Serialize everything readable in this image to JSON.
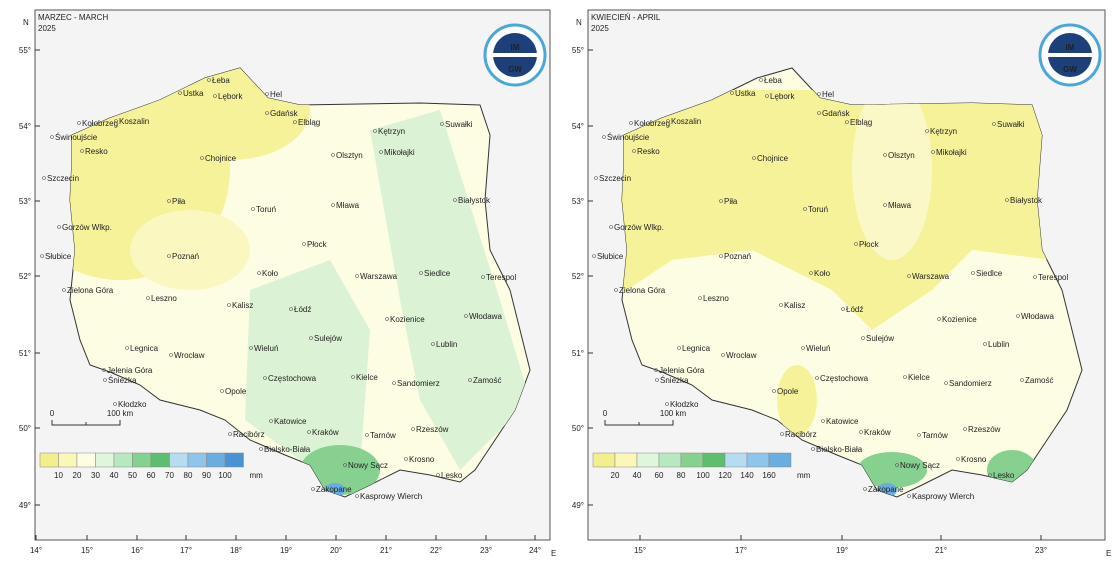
{
  "cities": [
    "Łeba",
    "Hel",
    "Ustka",
    "Lębork",
    "Gdańsk",
    "Elbląg",
    "Kołobrzeg",
    "Koszalin",
    "Świnoujście",
    "Kętrzyn",
    "Suwałki",
    "Mikołajki",
    "Olsztyn",
    "Chojnice",
    "Resko",
    "Szczecin",
    "Białystok",
    "Piła",
    "Toruń",
    "Mława",
    "Gorzów Wlkp.",
    "Płock",
    "Słubice",
    "Poznań",
    "Siedlce",
    "Terespol",
    "Koło",
    "Warszawa",
    "Zielona Góra",
    "Leszno",
    "Kalisz",
    "Łódź",
    "Włodawa",
    "Kozienice",
    "Sulejów",
    "Legnica",
    "Lublin",
    "Wieluń",
    "Wrocław",
    "Jelenia Góra",
    "Śnieżka",
    "Częstochowa",
    "Kielce",
    "Sandomierz",
    "Zamość",
    "Opole",
    "Kłodzko",
    "Katowice",
    "Racibórz",
    "Kraków",
    "Tarnów",
    "Rzeszów",
    "Bielsko-Biała",
    "Nowy Sącz",
    "Krosno",
    "Lesko",
    "Zakopane",
    "Kasprowy Wierch"
  ],
  "panels": [
    {
      "title": "MARZEC - MARCH",
      "year": "2025",
      "north_label": "N",
      "east_label": "E",
      "lat_labels": [
        "55°",
        "54°",
        "53°",
        "52°",
        "51°",
        "50°",
        "49°"
      ],
      "lon_labels": [
        "14°",
        "15°",
        "16°",
        "17°",
        "18°",
        "19°",
        "20°",
        "21°",
        "22°",
        "23°",
        "24°"
      ],
      "scale": {
        "start": "0",
        "end": "100 km"
      },
      "legend": {
        "labels": [
          10,
          20,
          30,
          40,
          50,
          60,
          70,
          80,
          90,
          100
        ],
        "unit": "mm"
      },
      "logo": {
        "top": "IM",
        "bottom": "GW"
      }
    },
    {
      "title": "KWIECIEŃ - APRIL",
      "year": "2025",
      "north_label": "N",
      "east_label": "E",
      "lat_labels": [
        "55°",
        "54°",
        "53°",
        "52°",
        "51°",
        "50°",
        "49°"
      ],
      "lon_labels": [
        "15°",
        "17°",
        "19°",
        "21°",
        "23°"
      ],
      "scale": {
        "start": "0",
        "end": "100 km"
      },
      "legend": {
        "labels": [
          20,
          40,
          60,
          80,
          100,
          120,
          140,
          160
        ],
        "unit": "mm"
      },
      "logo": {
        "top": "IM",
        "bottom": "GW"
      }
    }
  ]
}
